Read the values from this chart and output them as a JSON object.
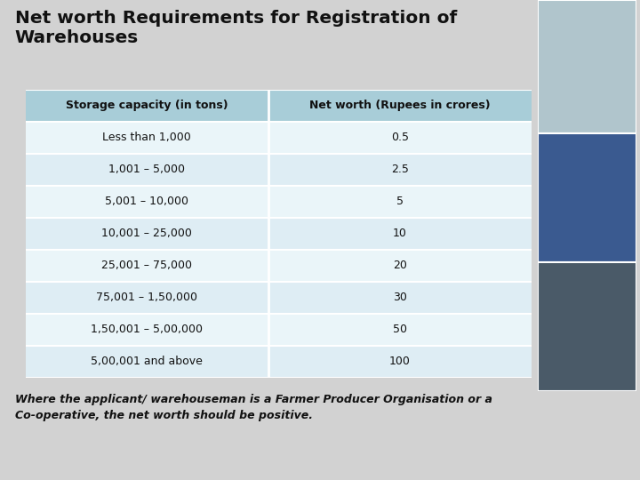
{
  "title_line1": "Net worth Requirements for Registration of",
  "title_line2": "Warehouses",
  "col1_header": "Storage capacity (in tons)",
  "col2_header": "Net worth (Rupees in crores)",
  "rows": [
    [
      "Less than 1,000",
      "0.5"
    ],
    [
      "1,001 – 5,000",
      "2.5"
    ],
    [
      "5,001 – 10,000",
      "5"
    ],
    [
      "10,001 – 25,000",
      "10"
    ],
    [
      "25,001 – 75,000",
      "20"
    ],
    [
      "75,001 – 1,50,000",
      "30"
    ],
    [
      "1,50,001 – 5,00,000",
      "50"
    ],
    [
      "5,00,001 and above",
      "100"
    ]
  ],
  "footer_line1": "Where the applicant/ warehouseman is a Farmer Producer Organisation or a",
  "footer_line2": "Co-operative, the net worth should be positive.",
  "bg_color": "#d2d2d2",
  "table_outer_bg": "#c8dde5",
  "header_bg": "#a8cdd8",
  "row_light": "#deedf4",
  "row_white": "#eaf5f9",
  "white_line": "#ffffff",
  "title_color": "#111111",
  "text_color": "#111111",
  "footer_color": "#111111",
  "img_colors": [
    "#b0c5cc",
    "#3a5a90",
    "#4a5a68"
  ],
  "img_border": "#999999"
}
